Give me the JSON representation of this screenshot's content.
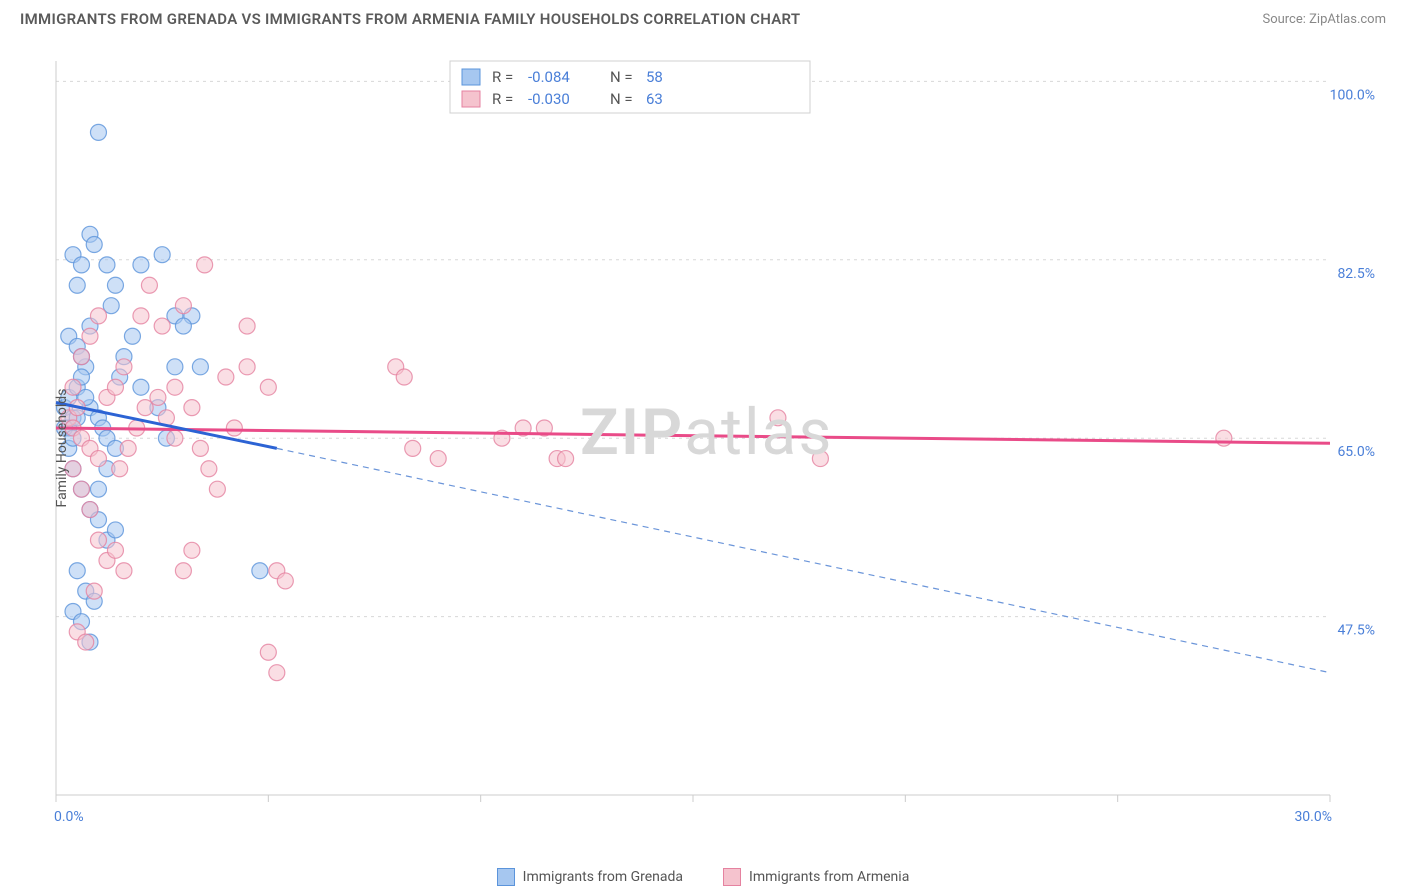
{
  "title": "IMMIGRANTS FROM GRENADA VS IMMIGRANTS FROM ARMENIA FAMILY HOUSEHOLDS CORRELATION CHART",
  "source": "Source: ZipAtlas.com",
  "ylabel": "Family Households",
  "watermark_zip": "ZIP",
  "watermark_atlas": "atlas",
  "chart": {
    "type": "scatter",
    "background_color": "#ffffff",
    "grid_color": "#d8d8d8",
    "axis_color": "#cccccc",
    "xlim": [
      0,
      30
    ],
    "ylim": [
      30,
      102
    ],
    "xtick_labels": {
      "0": "0.0%",
      "30": "30.0%"
    },
    "xtick_positions": [
      0,
      5,
      10,
      15,
      20,
      25,
      30
    ],
    "ytick_gridlines": [
      47.5,
      65.0,
      82.5,
      100.0
    ],
    "ytick_labels": [
      "47.5%",
      "65.0%",
      "82.5%",
      "100.0%"
    ],
    "marker_radius": 8,
    "marker_opacity": 0.55,
    "series": [
      {
        "name": "Immigrants from Grenada",
        "color_fill": "#a6c7f0",
        "color_stroke": "#5b94db",
        "R": "-0.084",
        "N": "58",
        "regression": {
          "x1": 0,
          "y1": 68.5,
          "x2": 5.2,
          "y2": 64.0,
          "color": "#2c63d4",
          "width": 3
        },
        "extrapolation": {
          "x1": 5.2,
          "y1": 64.0,
          "x2": 30,
          "y2": 42.0,
          "color": "#6b95d9",
          "width": 1.2,
          "dash": "6,5"
        },
        "points": [
          [
            0.2,
            68
          ],
          [
            0.3,
            69
          ],
          [
            0.4,
            67
          ],
          [
            0.3,
            66
          ],
          [
            0.5,
            70
          ],
          [
            0.4,
            83
          ],
          [
            0.6,
            82
          ],
          [
            0.5,
            80
          ],
          [
            0.8,
            85
          ],
          [
            0.9,
            84
          ],
          [
            1.0,
            95
          ],
          [
            1.2,
            82
          ],
          [
            1.4,
            80
          ],
          [
            1.3,
            78
          ],
          [
            0.3,
            75
          ],
          [
            0.5,
            74
          ],
          [
            0.7,
            72
          ],
          [
            0.6,
            71
          ],
          [
            0.8,
            68
          ],
          [
            1.0,
            67
          ],
          [
            1.1,
            66
          ],
          [
            1.2,
            65
          ],
          [
            1.4,
            64
          ],
          [
            1.5,
            71
          ],
          [
            1.6,
            73
          ],
          [
            2.0,
            82
          ],
          [
            2.5,
            83
          ],
          [
            2.8,
            77
          ],
          [
            2.0,
            70
          ],
          [
            2.4,
            68
          ],
          [
            2.6,
            65
          ],
          [
            2.8,
            72
          ],
          [
            1.8,
            75
          ],
          [
            0.4,
            62
          ],
          [
            0.6,
            60
          ],
          [
            0.8,
            58
          ],
          [
            1.0,
            57
          ],
          [
            1.2,
            55
          ],
          [
            1.4,
            56
          ],
          [
            0.5,
            52
          ],
          [
            0.7,
            50
          ],
          [
            0.9,
            49
          ],
          [
            0.4,
            48
          ],
          [
            0.6,
            47
          ],
          [
            0.8,
            45
          ],
          [
            4.8,
            52
          ],
          [
            3.2,
            77
          ],
          [
            3.4,
            72
          ],
          [
            3.0,
            76
          ],
          [
            1.0,
            60
          ],
          [
            1.2,
            62
          ],
          [
            0.3,
            64
          ],
          [
            0.2,
            66
          ],
          [
            0.4,
            65
          ],
          [
            0.5,
            67
          ],
          [
            0.7,
            69
          ],
          [
            0.6,
            73
          ],
          [
            0.8,
            76
          ]
        ]
      },
      {
        "name": "Immigrants from Armenia",
        "color_fill": "#f5c3ce",
        "color_stroke": "#e582a0",
        "R": "-0.030",
        "N": "63",
        "regression": {
          "x1": 0,
          "y1": 66.0,
          "x2": 30,
          "y2": 64.5,
          "color": "#e94b88",
          "width": 3
        },
        "points": [
          [
            0.3,
            67
          ],
          [
            0.5,
            68
          ],
          [
            0.4,
            66
          ],
          [
            0.6,
            65
          ],
          [
            0.8,
            64
          ],
          [
            1.0,
            63
          ],
          [
            1.2,
            69
          ],
          [
            1.4,
            70
          ],
          [
            1.6,
            72
          ],
          [
            2.0,
            77
          ],
          [
            2.5,
            76
          ],
          [
            3.0,
            78
          ],
          [
            3.5,
            82
          ],
          [
            2.8,
            70
          ],
          [
            3.2,
            68
          ],
          [
            4.0,
            71
          ],
          [
            4.5,
            72
          ],
          [
            4.2,
            66
          ],
          [
            4.5,
            76
          ],
          [
            5.0,
            70
          ],
          [
            5.2,
            52
          ],
          [
            5.4,
            51
          ],
          [
            5.0,
            44
          ],
          [
            5.2,
            42
          ],
          [
            8.0,
            72
          ],
          [
            8.2,
            71
          ],
          [
            8.4,
            64
          ],
          [
            9.0,
            63
          ],
          [
            10.5,
            65
          ],
          [
            11.0,
            66
          ],
          [
            11.5,
            66
          ],
          [
            11.8,
            63
          ],
          [
            12.0,
            63
          ],
          [
            17.0,
            67
          ],
          [
            18.0,
            63
          ],
          [
            27.5,
            65
          ],
          [
            0.4,
            62
          ],
          [
            0.6,
            60
          ],
          [
            0.8,
            58
          ],
          [
            1.0,
            55
          ],
          [
            1.2,
            53
          ],
          [
            1.4,
            54
          ],
          [
            1.6,
            52
          ],
          [
            0.5,
            46
          ],
          [
            0.7,
            45
          ],
          [
            0.9,
            50
          ],
          [
            0.4,
            70
          ],
          [
            0.6,
            73
          ],
          [
            0.8,
            75
          ],
          [
            1.0,
            77
          ],
          [
            2.2,
            80
          ],
          [
            2.4,
            69
          ],
          [
            2.6,
            67
          ],
          [
            2.8,
            65
          ],
          [
            3.4,
            64
          ],
          [
            3.6,
            62
          ],
          [
            3.8,
            60
          ],
          [
            1.5,
            62
          ],
          [
            1.7,
            64
          ],
          [
            1.9,
            66
          ],
          [
            2.1,
            68
          ],
          [
            3.0,
            52
          ],
          [
            3.2,
            54
          ]
        ]
      }
    ]
  },
  "bottom_legend": [
    {
      "label": "Immigrants from Grenada",
      "fill": "#a6c7f0",
      "stroke": "#5b94db"
    },
    {
      "label": "Immigrants from Armenia",
      "fill": "#f5c3ce",
      "stroke": "#e582a0"
    }
  ]
}
